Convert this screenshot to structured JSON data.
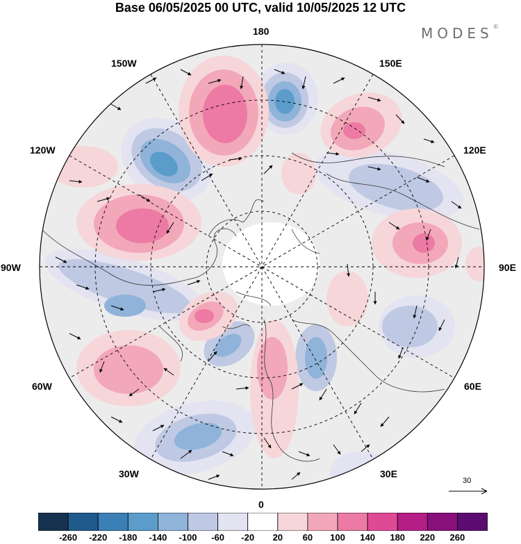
{
  "title": "Base 06/05/2025 00 UTC, valid 10/05/2025 12 UTC",
  "brand": "MODES",
  "brand_mark": "©",
  "longitude_labels": {
    "n180": "180",
    "e150": "150E",
    "e120": "120E",
    "e90": "90E",
    "e60": "60E",
    "e30": "30E",
    "s0": "0",
    "w30": "30W",
    "w60": "60W",
    "w90": "90W",
    "w120": "120W",
    "w150": "150W"
  },
  "reference_vector": {
    "label": "30"
  },
  "colorbar": {
    "labels": [
      "-260",
      "-220",
      "-180",
      "-140",
      "-100",
      "-60",
      "-20",
      "20",
      "60",
      "100",
      "140",
      "180",
      "220",
      "260"
    ],
    "colors": [
      "#16324f",
      "#1f5a8c",
      "#3a7fb6",
      "#5b9ccb",
      "#8fb3d9",
      "#bfc9e3",
      "#e3e3f1",
      "#ffffff",
      "#f6d6d9",
      "#f2a8b8",
      "#ec7aa4",
      "#df4a95",
      "#b51e84",
      "#87107c",
      "#5a0c70"
    ]
  },
  "field_colors": {
    "land_background": "#ececec",
    "neg_weak": "#e3e3f1",
    "neg_light": "#bfc9e3",
    "neg_mid": "#8fb3d9",
    "neg_strong": "#5b9ccb",
    "neg_core": "#3a7fb6",
    "pos_weak": "#f6d6d9",
    "pos_light": "#f2a8b8",
    "pos_mid": "#ec7aa4",
    "pos_core": "#df4a95"
  }
}
